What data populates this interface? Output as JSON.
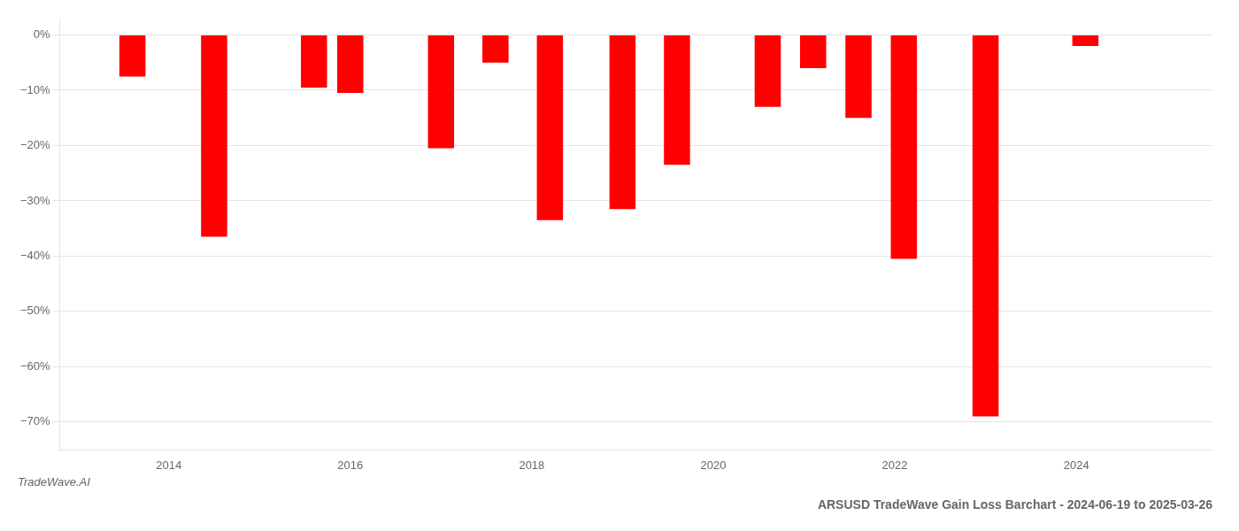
{
  "chart_data": {
    "type": "bar",
    "title": "ARSUSD TradeWave Gain Loss Barchart - 2024-06-19 to 2025-03-26",
    "annotations": [
      "TradeWave.AI"
    ],
    "x": [
      2013.6,
      2014.5,
      2015.6,
      2016.0,
      2017.0,
      2017.6,
      2018.2,
      2019.0,
      2019.6,
      2020.6,
      2021.1,
      2021.6,
      2022.1,
      2023.0,
      2024.1
    ],
    "values": [
      -7.5,
      -36.5,
      -9.5,
      -10.5,
      -20.5,
      -5.0,
      -33.5,
      -31.5,
      -23.5,
      -13.0,
      -6.0,
      -15.0,
      -40.5,
      -69.0,
      -2.0
    ],
    "color": "#ff0000",
    "xlim": [
      2012.8,
      2025.5
    ],
    "xticks": [
      2014,
      2016,
      2018,
      2020,
      2022,
      2024
    ],
    "ylim": [
      -75,
      3
    ],
    "yticks": [
      {
        "value": 0,
        "label": "0%"
      },
      {
        "value": -10,
        "label": "−10%"
      },
      {
        "value": -20,
        "label": "−20%"
      },
      {
        "value": -30,
        "label": "−30%"
      },
      {
        "value": -40,
        "label": "−40%"
      },
      {
        "value": -50,
        "label": "−50%"
      },
      {
        "value": -60,
        "label": "−60%"
      },
      {
        "value": -70,
        "label": "−70%"
      }
    ],
    "grid": "y"
  }
}
